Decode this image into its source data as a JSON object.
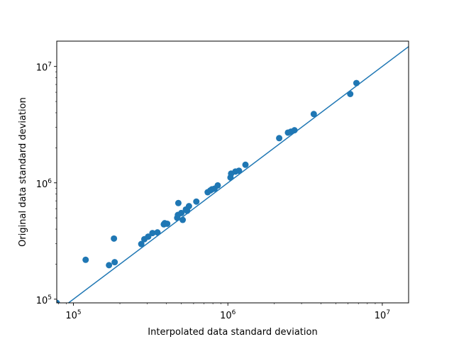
{
  "chart_data": {
    "type": "scatter",
    "title": "",
    "xlabel": "Interpolated data standard deviation",
    "ylabel": "Original data standard deviation",
    "x_scale": "log",
    "y_scale": "log",
    "xlim": [
      78000,
      14800000
    ],
    "ylim": [
      93000,
      16500000
    ],
    "grid": false,
    "legend": "none",
    "x_ticks": [
      {
        "value": 100000,
        "mantissa": "10",
        "exponent": "5"
      },
      {
        "value": 1000000,
        "mantissa": "10",
        "exponent": "6"
      },
      {
        "value": 10000000,
        "mantissa": "10",
        "exponent": "7"
      }
    ],
    "y_ticks": [
      {
        "value": 100000,
        "mantissa": "10",
        "exponent": "5"
      },
      {
        "value": 1000000,
        "mantissa": "10",
        "exponent": "6"
      },
      {
        "value": 10000000,
        "mantissa": "10",
        "exponent": "7"
      }
    ],
    "series": [
      {
        "kind": "scatter",
        "color": "#1f77b4",
        "points": [
          [
            78000,
            93000
          ],
          [
            120000,
            218000
          ],
          [
            170000,
            196000
          ],
          [
            185000,
            208000
          ],
          [
            183000,
            332000
          ],
          [
            275000,
            298000
          ],
          [
            288000,
            328000
          ],
          [
            305000,
            345000
          ],
          [
            325000,
            370000
          ],
          [
            350000,
            375000
          ],
          [
            385000,
            440000
          ],
          [
            390000,
            450000
          ],
          [
            405000,
            445000
          ],
          [
            470000,
            500000
          ],
          [
            475000,
            530000
          ],
          [
            478000,
            670000
          ],
          [
            500000,
            550000
          ],
          [
            510000,
            480000
          ],
          [
            535000,
            590000
          ],
          [
            545000,
            575000
          ],
          [
            560000,
            630000
          ],
          [
            625000,
            690000
          ],
          [
            740000,
            830000
          ],
          [
            770000,
            860000
          ],
          [
            790000,
            880000
          ],
          [
            820000,
            890000
          ],
          [
            860000,
            950000
          ],
          [
            1040000,
            1110000
          ],
          [
            1050000,
            1200000
          ],
          [
            1120000,
            1250000
          ],
          [
            1180000,
            1270000
          ],
          [
            1300000,
            1430000
          ],
          [
            2150000,
            2420000
          ],
          [
            2450000,
            2700000
          ],
          [
            2560000,
            2750000
          ],
          [
            2700000,
            2830000
          ],
          [
            3600000,
            3900000
          ],
          [
            6200000,
            5800000
          ],
          [
            6800000,
            7200000
          ]
        ]
      },
      {
        "kind": "line",
        "color": "#1f77b4",
        "points": [
          [
            78000,
            78000
          ],
          [
            14800000,
            14800000
          ]
        ]
      }
    ]
  }
}
